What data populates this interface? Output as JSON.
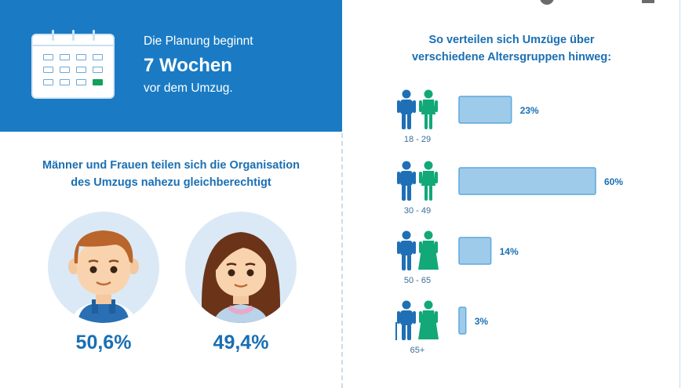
{
  "planning": {
    "line1": "Die Planung beginnt",
    "weeks": "7 Wochen",
    "line3": "vor dem Umzug."
  },
  "gender": {
    "title_line1": "Männer und Frauen teilen sich die Organisation",
    "title_line2": "des Umzugs nahezu gleichberechtigt",
    "men_pct": "50,6%",
    "women_pct": "49,4%"
  },
  "age": {
    "title_line1": "So verteilen sich Umzüge über",
    "title_line2": "verschiedene Altersgruppen hinweg:"
  },
  "colors": {
    "primary": "#1a7bc4",
    "male_icon": "#1e6fb5",
    "female_icon": "#12a878",
    "bar_fill": "#9ecbea",
    "bar_stroke": "#5ea8dc",
    "text_blue": "#1a6fb3"
  },
  "icons": [
    "calendar-icon",
    "man-avatar",
    "woman-avatar",
    "male-person-icon",
    "female-person-icon"
  ],
  "chart_data": [
    {
      "type": "bar",
      "orientation": "horizontal",
      "categories": [
        "18 - 29",
        "30 - 49",
        "50 - 65",
        "65+"
      ],
      "values": [
        23,
        60,
        14,
        3
      ],
      "value_labels": [
        "23%",
        "60%",
        "14%",
        "3%"
      ],
      "unit": "%",
      "title": "So verteilen sich Umzüge über verschiedene Altersgruppen hinweg:",
      "xlim": [
        0,
        60
      ],
      "grid": false,
      "legend": "none"
    },
    {
      "type": "table",
      "categories": [
        "Männer",
        "Frauen"
      ],
      "values": [
        50.6,
        49.4
      ],
      "value_labels": [
        "50,6%",
        "49,4%"
      ],
      "title": "Männer und Frauen teilen sich die Organisation des Umzugs nahezu gleichberechtigt"
    }
  ]
}
